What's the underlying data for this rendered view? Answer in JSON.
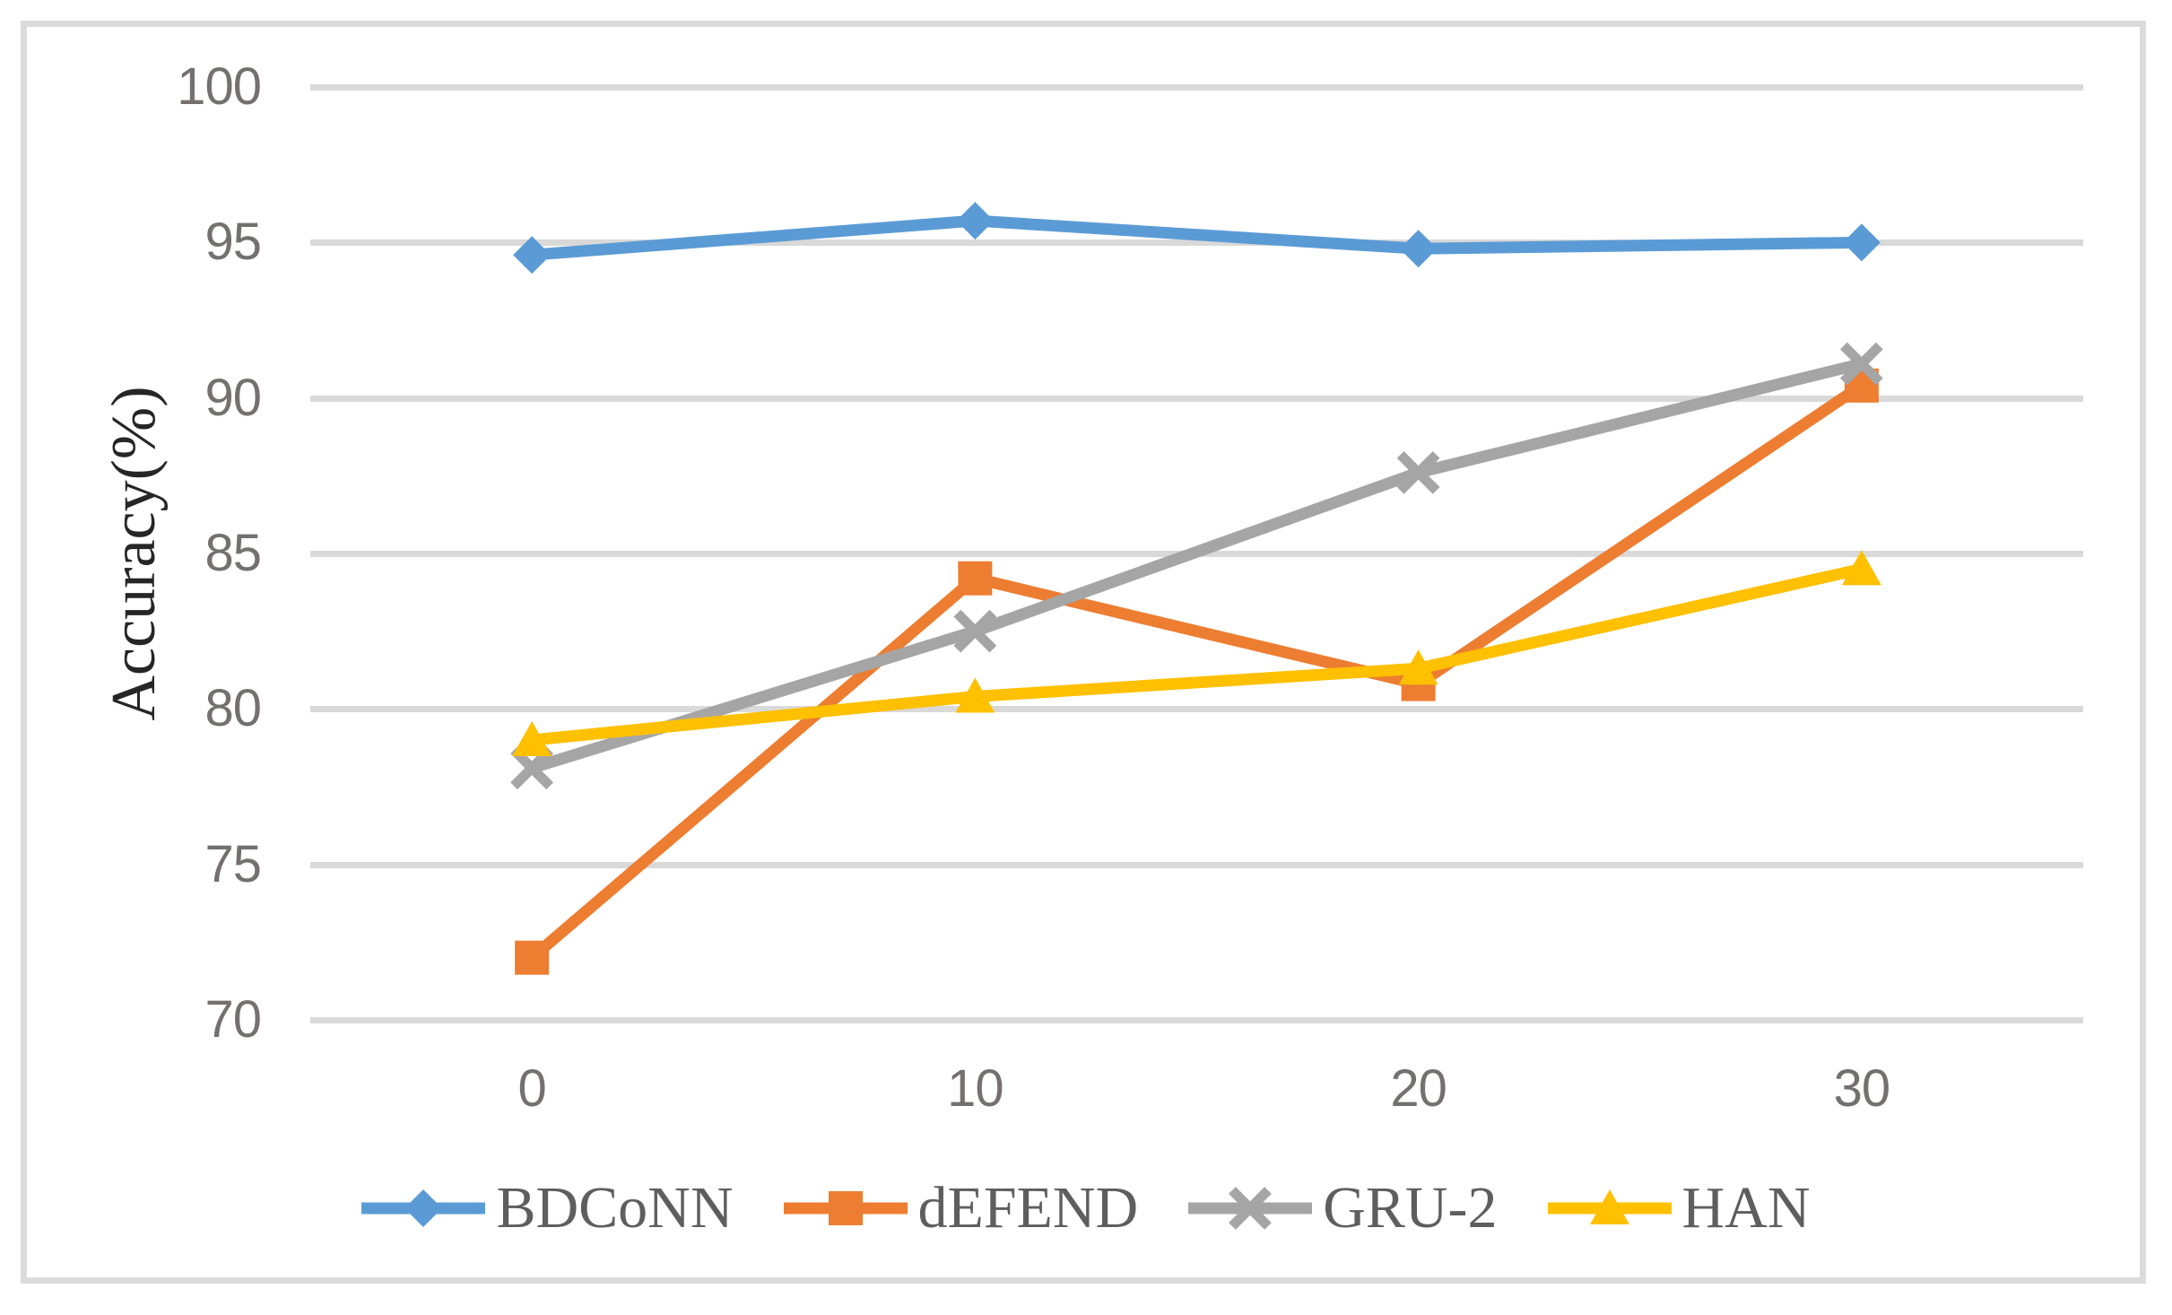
{
  "chart_data": {
    "type": "line",
    "title": "",
    "xlabel": "",
    "ylabel": "Accuracy(%)",
    "categories": [
      "0",
      "10",
      "20",
      "30"
    ],
    "y_ticks": [
      100,
      95,
      90,
      85,
      80,
      75,
      70
    ],
    "ylim": [
      70,
      100
    ],
    "grid": "horizontal-only",
    "legend_position": "bottom",
    "series": [
      {
        "name": "BDCoNN",
        "marker": "diamond",
        "color": "#5B9BD5",
        "values": [
          94.6,
          95.7,
          94.8,
          95.0
        ]
      },
      {
        "name": "dEFEND",
        "marker": "square",
        "color": "#ED7D31",
        "values": [
          72.0,
          84.2,
          80.8,
          90.4
        ]
      },
      {
        "name": "GRU-2",
        "marker": "x",
        "color": "#A5A5A5",
        "values": [
          78.1,
          82.5,
          87.6,
          91.1
        ]
      },
      {
        "name": "HAN",
        "marker": "triangle",
        "color": "#FFC000",
        "values": [
          79.0,
          80.4,
          81.3,
          84.5
        ]
      }
    ],
    "colors": {
      "gridline": "#d9d9d9",
      "frame_border": "#dbdbdb",
      "tick_text": "#757070",
      "legend_text": "#5e5e5e",
      "axis_title_text": "#262626",
      "background": "#ffffff"
    }
  }
}
